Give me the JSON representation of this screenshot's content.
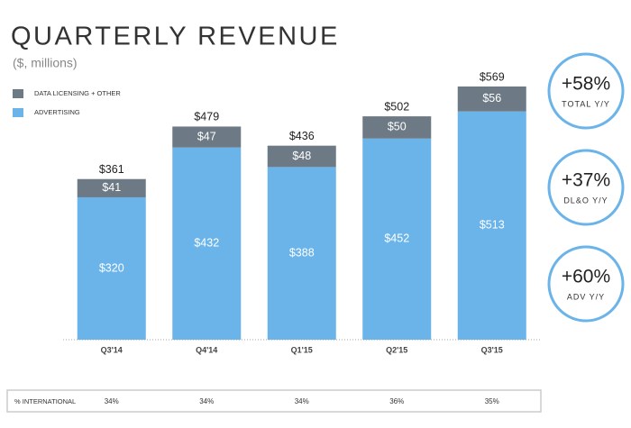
{
  "chart_data": {
    "type": "stacked_bar",
    "title": "QUARTERLY REVENUE",
    "subtitle": "($, millions)",
    "categories": [
      "Q3'14",
      "Q4'14",
      "Q1'15",
      "Q2'15",
      "Q3'15"
    ],
    "series": [
      {
        "name": "ADVERTISING",
        "color": "#6ab4ea",
        "values": [
          320,
          432,
          388,
          452,
          513
        ],
        "value_labels": [
          "$320",
          "$432",
          "$388",
          "$452",
          "$513"
        ]
      },
      {
        "name": "DATA LICENSING + OTHER",
        "color": "#6d7a86",
        "values": [
          41,
          47,
          48,
          50,
          56
        ],
        "value_labels": [
          "$41",
          "$47",
          "$48",
          "$50",
          "$56"
        ]
      }
    ],
    "totals": {
      "values": [
        361,
        479,
        436,
        502,
        569
      ],
      "value_labels": [
        "$361",
        "$479",
        "$436",
        "$502",
        "$569"
      ]
    },
    "callouts": [
      {
        "text": "+58%",
        "label": "TOTAL Y/Y"
      },
      {
        "text": "+37%",
        "label": "DL&O Y/Y"
      },
      {
        "text": "+60%",
        "label": "ADV Y/Y"
      }
    ],
    "international": {
      "label": "% INTERNATIONAL",
      "values": [
        "34%",
        "34%",
        "34%",
        "36%",
        "35%"
      ]
    }
  }
}
